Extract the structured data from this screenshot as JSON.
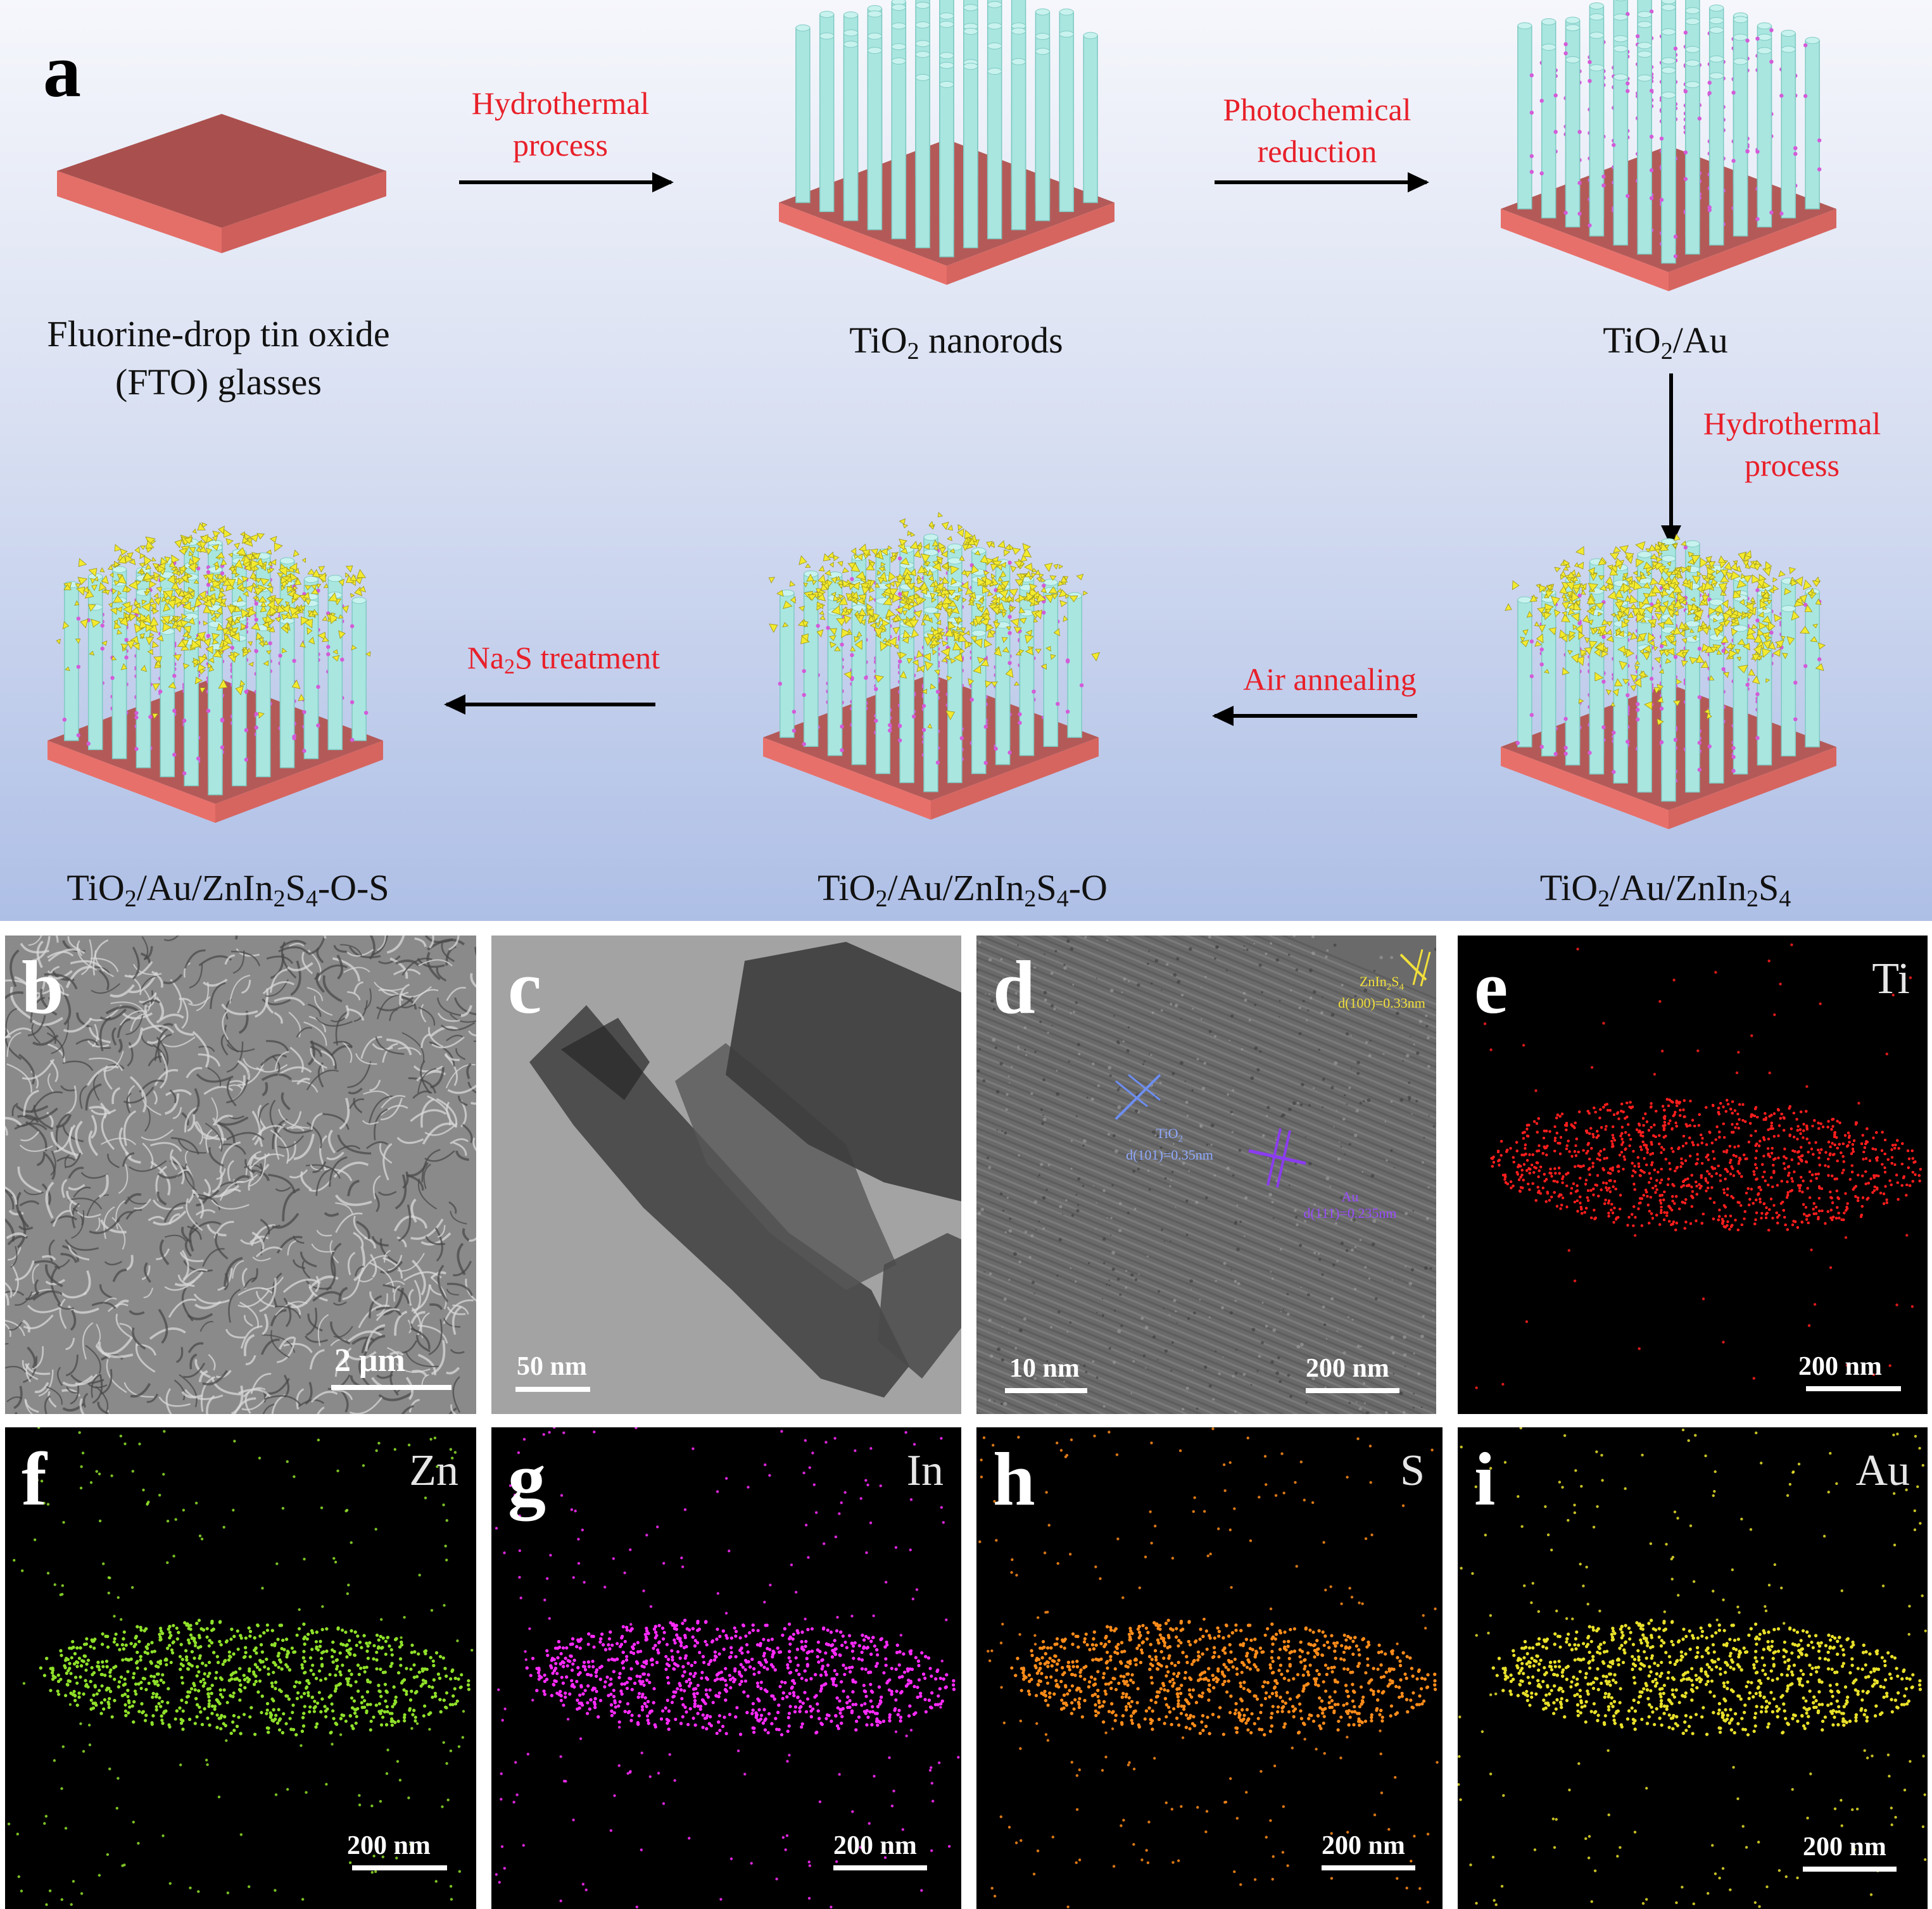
{
  "panel_a": {
    "label": "a",
    "steps": {
      "s1": [
        "Hydrothermal",
        "process"
      ],
      "s2": [
        "Photochemical",
        "reduction"
      ],
      "s3": [
        "Hydrothermal",
        "process"
      ],
      "s4": "Air annealing",
      "s5_pre": "Na",
      "s5_sub": "2",
      "s5_post": "S treatment"
    },
    "names": {
      "fto_line1": "Fluorine-drop tin oxide",
      "fto_line2": "(FTO) glasses",
      "tio2_pre": "TiO",
      "tio2_sub": "2",
      "tio2_post": " nanorods",
      "tau_pre": "TiO",
      "tau_sub": "2",
      "tau_post": "/Au",
      "tazis_a": "TiO",
      "tazis_s1": "2",
      "tazis_b": "/Au/ZnIn",
      "tazis_s2": "2",
      "tazis_c": "S",
      "tazis_s3": "4",
      "tazis_o_end": "-O",
      "tazis_os_end": "-O-S"
    }
  },
  "panels": [
    {
      "label": "b",
      "element": "",
      "scale": "2 μm",
      "bg": "#8a8a8a"
    },
    {
      "label": "c",
      "element": "",
      "scale": "50 nm",
      "bg": "#9a9a9a"
    },
    {
      "label": "d",
      "element": "",
      "scale": "10 nm",
      "scale2": "200 nm",
      "bg": "#6e6e6e"
    },
    {
      "label": "e",
      "element": "Ti",
      "scale": "200 nm",
      "color": "#ff1e1e"
    },
    {
      "label": "f",
      "element": "Zn",
      "scale": "200 nm",
      "color": "#8fe02a"
    },
    {
      "label": "g",
      "element": "In",
      "scale": "200 nm",
      "color": "#ff2bff"
    },
    {
      "label": "h",
      "element": "S",
      "scale": "200 nm",
      "color": "#ff8c1a"
    },
    {
      "label": "i",
      "element": "Au",
      "scale": "200 nm",
      "color": "#e8e02a"
    }
  ],
  "hrtem": {
    "zis_a": "ZnIn",
    "zis_s1": "2",
    "zis_b": "S",
    "zis_s2": "4",
    "zis_d": "d(100)=0.33nm",
    "tio_a": "TiO",
    "tio_s": "2",
    "tio_d": "d(101)=0.35nm",
    "au_a": "Au",
    "au_d": "d(111)=0.235nm"
  },
  "colors": {
    "step_text": "#e8202a",
    "substrate_top": "#b35a58",
    "substrate_side": "#e8706a",
    "rod": "#a9e6e0",
    "au_dot": "#d35bd8",
    "zis_flake": "#f2ea2e"
  }
}
